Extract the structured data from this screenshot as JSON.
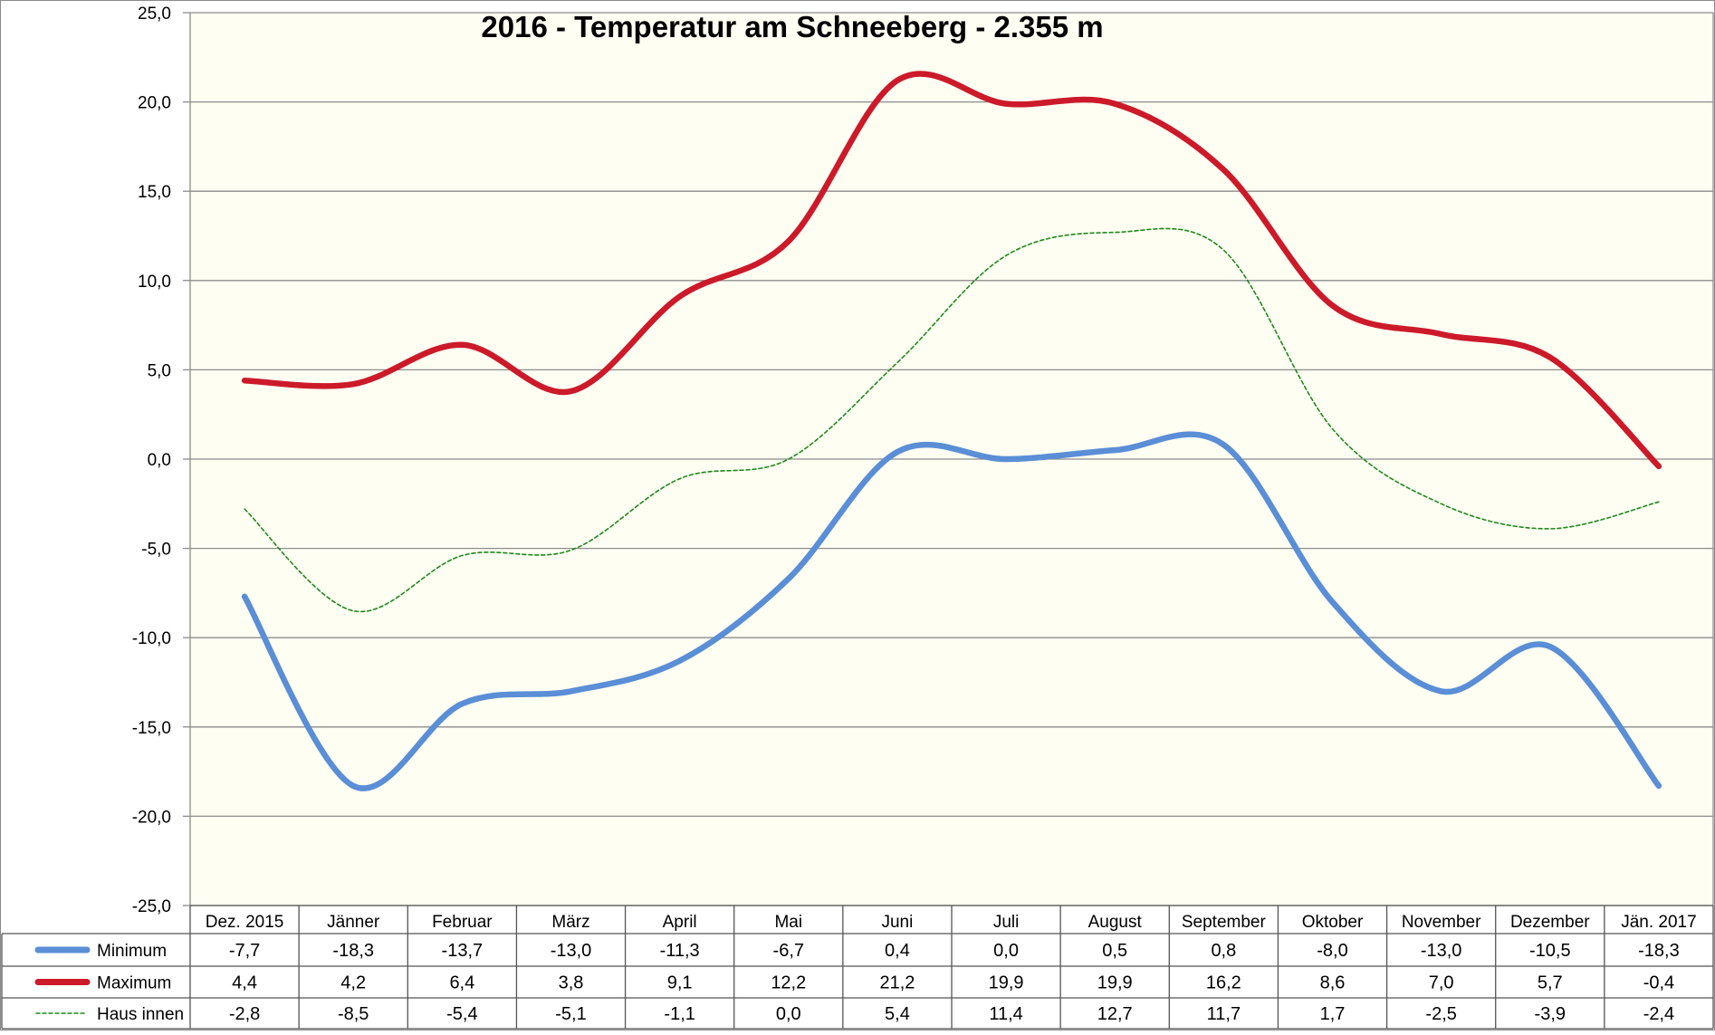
{
  "chart_data": {
    "type": "line",
    "title": "2016 - Temperatur am Schneeberg - 2.355 m",
    "xlabel": "",
    "ylabel": "",
    "ylim": [
      -25,
      25
    ],
    "ytick_step": 5,
    "ytick_labels": [
      "25,0",
      "20,0",
      "15,0",
      "10,0",
      "5,0",
      "0,0",
      "-5,0",
      "-10,0",
      "-15,0",
      "-20,0",
      "-25,0"
    ],
    "grid": true,
    "legend": "data-table-below",
    "categories": [
      "Dez. 2015",
      "Jänner",
      "Februar",
      "März",
      "April",
      "Mai",
      "Juni",
      "Juli",
      "August",
      "September",
      "Oktober",
      "November",
      "Dezember",
      "Jän. 2017"
    ],
    "series": [
      {
        "name": "Minimum",
        "color": "#5a8ed6",
        "style": "thick",
        "values": [
          -7.7,
          -18.3,
          -13.7,
          -13.0,
          -11.3,
          -6.7,
          0.4,
          0.0,
          0.5,
          0.8,
          -8.0,
          -13.0,
          -10.5,
          -18.3
        ],
        "labels": [
          "-7,7",
          "-18,3",
          "-13,7",
          "-13,0",
          "-11,3",
          "-6,7",
          "0,4",
          "0,0",
          "0,5",
          "0,8",
          "-8,0",
          "-13,0",
          "-10,5",
          "-18,3"
        ]
      },
      {
        "name": "Maximum",
        "color": "#cc1a2a",
        "style": "thick",
        "values": [
          4.4,
          4.2,
          6.4,
          3.8,
          9.1,
          12.2,
          21.2,
          19.9,
          19.9,
          16.2,
          8.6,
          7.0,
          5.7,
          -0.4
        ],
        "labels": [
          "4,4",
          "4,2",
          "6,4",
          "3,8",
          "9,1",
          "12,2",
          "21,2",
          "19,9",
          "19,9",
          "16,2",
          "8,6",
          "7,0",
          "5,7",
          "-0,4"
        ]
      },
      {
        "name": "Haus innen",
        "color": "#1e8a1e",
        "style": "dashed",
        "values": [
          -2.8,
          -8.5,
          -5.4,
          -5.1,
          -1.1,
          0.0,
          5.4,
          11.4,
          12.7,
          11.7,
          1.7,
          -2.5,
          -3.9,
          -2.4
        ],
        "labels": [
          "-2,8",
          "-8,5",
          "-5,4",
          "-5,1",
          "-1,1",
          "0,0",
          "5,4",
          "11,4",
          "12,7",
          "11,7",
          "1,7",
          "-2,5",
          "-3,9",
          "-2,4"
        ]
      }
    ]
  }
}
